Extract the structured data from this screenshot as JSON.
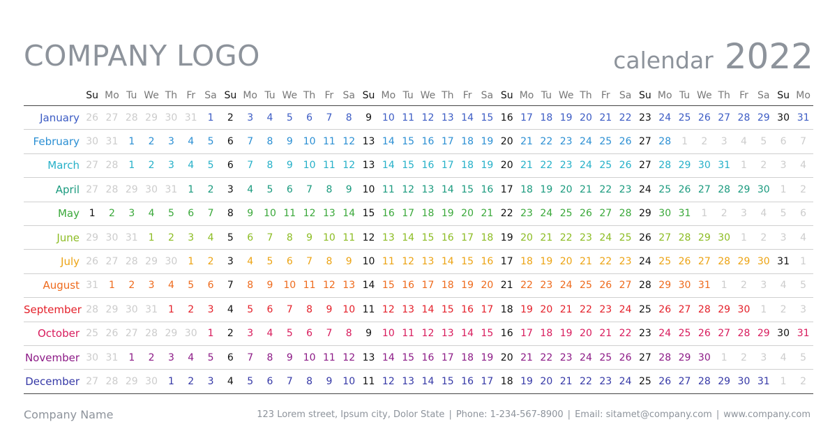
{
  "header": {
    "logo": "COMPANY LOGO",
    "title_word": "calendar",
    "year": "2022"
  },
  "weekdays": [
    "Su",
    "Mo",
    "Tu",
    "We",
    "Th",
    "Fr",
    "Sa",
    "Su",
    "Mo",
    "Tu",
    "We",
    "Th",
    "Fr",
    "Sa",
    "Su",
    "Mo",
    "Tu",
    "We",
    "Th",
    "Fr",
    "Sa",
    "Su",
    "Mo",
    "Tu",
    "We",
    "Th",
    "Fr",
    "Sa",
    "Su",
    "Mo",
    "Tu",
    "We",
    "Th",
    "Fr",
    "Sa",
    "Su",
    "Mo"
  ],
  "months": [
    {
      "name": "January",
      "color": "#3b5bc4",
      "days": [
        "26",
        "27",
        "28",
        "29",
        "30",
        "31",
        "1",
        "2",
        "3",
        "4",
        "5",
        "6",
        "7",
        "8",
        "9",
        "10",
        "11",
        "12",
        "13",
        "14",
        "15",
        "16",
        "17",
        "18",
        "19",
        "20",
        "21",
        "22",
        "23",
        "24",
        "25",
        "26",
        "27",
        "28",
        "29",
        "30",
        "31"
      ],
      "inMonth": [
        false,
        false,
        false,
        false,
        false,
        false,
        true,
        true,
        true,
        true,
        true,
        true,
        true,
        true,
        true,
        true,
        true,
        true,
        true,
        true,
        true,
        true,
        true,
        true,
        true,
        true,
        true,
        true,
        true,
        true,
        true,
        true,
        true,
        true,
        true,
        true,
        true
      ]
    },
    {
      "name": "February",
      "color": "#2b8fd3",
      "days": [
        "30",
        "31",
        "1",
        "2",
        "3",
        "4",
        "5",
        "6",
        "7",
        "8",
        "9",
        "10",
        "11",
        "12",
        "13",
        "14",
        "15",
        "16",
        "17",
        "18",
        "19",
        "20",
        "21",
        "22",
        "23",
        "24",
        "25",
        "26",
        "27",
        "28",
        "1",
        "2",
        "3",
        "4",
        "5",
        "6",
        "7"
      ],
      "inMonth": [
        false,
        false,
        true,
        true,
        true,
        true,
        true,
        true,
        true,
        true,
        true,
        true,
        true,
        true,
        true,
        true,
        true,
        true,
        true,
        true,
        true,
        true,
        true,
        true,
        true,
        true,
        true,
        true,
        true,
        true,
        false,
        false,
        false,
        false,
        false,
        false,
        false
      ]
    },
    {
      "name": "March",
      "color": "#25b0c8",
      "days": [
        "27",
        "28",
        "1",
        "2",
        "3",
        "4",
        "5",
        "6",
        "7",
        "8",
        "9",
        "10",
        "11",
        "12",
        "13",
        "14",
        "15",
        "16",
        "17",
        "18",
        "19",
        "20",
        "21",
        "22",
        "23",
        "24",
        "25",
        "26",
        "27",
        "28",
        "29",
        "30",
        "31",
        "1",
        "2",
        "3",
        "4"
      ],
      "inMonth": [
        false,
        false,
        true,
        true,
        true,
        true,
        true,
        true,
        true,
        true,
        true,
        true,
        true,
        true,
        true,
        true,
        true,
        true,
        true,
        true,
        true,
        true,
        true,
        true,
        true,
        true,
        true,
        true,
        true,
        true,
        true,
        true,
        true,
        false,
        false,
        false,
        false
      ]
    },
    {
      "name": "April",
      "color": "#1a9a7e",
      "days": [
        "27",
        "28",
        "29",
        "30",
        "31",
        "1",
        "2",
        "3",
        "4",
        "5",
        "6",
        "7",
        "8",
        "9",
        "10",
        "11",
        "12",
        "13",
        "14",
        "15",
        "16",
        "17",
        "18",
        "19",
        "20",
        "21",
        "22",
        "23",
        "24",
        "25",
        "26",
        "27",
        "28",
        "29",
        "30",
        "1",
        "2"
      ],
      "inMonth": [
        false,
        false,
        false,
        false,
        false,
        true,
        true,
        true,
        true,
        true,
        true,
        true,
        true,
        true,
        true,
        true,
        true,
        true,
        true,
        true,
        true,
        true,
        true,
        true,
        true,
        true,
        true,
        true,
        true,
        true,
        true,
        true,
        true,
        true,
        true,
        false,
        false
      ]
    },
    {
      "name": "May",
      "color": "#3aa83a",
      "days": [
        "1",
        "2",
        "3",
        "4",
        "5",
        "6",
        "7",
        "8",
        "9",
        "10",
        "11",
        "12",
        "13",
        "14",
        "15",
        "16",
        "17",
        "18",
        "19",
        "20",
        "21",
        "22",
        "23",
        "24",
        "25",
        "26",
        "27",
        "28",
        "29",
        "30",
        "31",
        "1",
        "2",
        "3",
        "4",
        "5",
        "6"
      ],
      "inMonth": [
        true,
        true,
        true,
        true,
        true,
        true,
        true,
        true,
        true,
        true,
        true,
        true,
        true,
        true,
        true,
        true,
        true,
        true,
        true,
        true,
        true,
        true,
        true,
        true,
        true,
        true,
        true,
        true,
        true,
        true,
        true,
        false,
        false,
        false,
        false,
        false,
        false
      ]
    },
    {
      "name": "June",
      "color": "#8cbc23",
      "days": [
        "29",
        "30",
        "31",
        "1",
        "2",
        "3",
        "4",
        "5",
        "6",
        "7",
        "8",
        "9",
        "10",
        "11",
        "12",
        "13",
        "14",
        "15",
        "16",
        "17",
        "18",
        "19",
        "20",
        "21",
        "22",
        "23",
        "24",
        "25",
        "26",
        "27",
        "28",
        "29",
        "30",
        "1",
        "2",
        "3",
        "4"
      ],
      "inMonth": [
        false,
        false,
        false,
        true,
        true,
        true,
        true,
        true,
        true,
        true,
        true,
        true,
        true,
        true,
        true,
        true,
        true,
        true,
        true,
        true,
        true,
        true,
        true,
        true,
        true,
        true,
        true,
        true,
        true,
        true,
        true,
        true,
        true,
        false,
        false,
        false,
        false
      ]
    },
    {
      "name": "July",
      "color": "#eca313",
      "days": [
        "26",
        "27",
        "28",
        "29",
        "30",
        "1",
        "2",
        "3",
        "4",
        "5",
        "6",
        "7",
        "8",
        "9",
        "10",
        "11",
        "12",
        "13",
        "14",
        "15",
        "16",
        "17",
        "18",
        "19",
        "20",
        "21",
        "22",
        "23",
        "24",
        "25",
        "26",
        "27",
        "28",
        "29",
        "30",
        "31",
        "1"
      ],
      "inMonth": [
        false,
        false,
        false,
        false,
        false,
        true,
        true,
        true,
        true,
        true,
        true,
        true,
        true,
        true,
        true,
        true,
        true,
        true,
        true,
        true,
        true,
        true,
        true,
        true,
        true,
        true,
        true,
        true,
        true,
        true,
        true,
        true,
        true,
        true,
        true,
        true,
        false
      ]
    },
    {
      "name": "August",
      "color": "#ee6a1c",
      "days": [
        "31",
        "1",
        "2",
        "3",
        "4",
        "5",
        "6",
        "7",
        "8",
        "9",
        "10",
        "11",
        "12",
        "13",
        "14",
        "15",
        "16",
        "17",
        "18",
        "19",
        "20",
        "21",
        "22",
        "23",
        "24",
        "25",
        "26",
        "27",
        "28",
        "29",
        "30",
        "31",
        "1",
        "2",
        "3",
        "4",
        "5"
      ],
      "inMonth": [
        false,
        true,
        true,
        true,
        true,
        true,
        true,
        true,
        true,
        true,
        true,
        true,
        true,
        true,
        true,
        true,
        true,
        true,
        true,
        true,
        true,
        true,
        true,
        true,
        true,
        true,
        true,
        true,
        true,
        true,
        true,
        true,
        false,
        false,
        false,
        false,
        false
      ]
    },
    {
      "name": "September",
      "color": "#e4202a",
      "days": [
        "28",
        "29",
        "30",
        "31",
        "1",
        "2",
        "3",
        "4",
        "5",
        "6",
        "7",
        "8",
        "9",
        "10",
        "11",
        "12",
        "13",
        "14",
        "15",
        "16",
        "17",
        "18",
        "19",
        "20",
        "21",
        "22",
        "23",
        "24",
        "25",
        "26",
        "27",
        "28",
        "29",
        "30",
        "1",
        "2",
        "3"
      ],
      "inMonth": [
        false,
        false,
        false,
        false,
        true,
        true,
        true,
        true,
        true,
        true,
        true,
        true,
        true,
        true,
        true,
        true,
        true,
        true,
        true,
        true,
        true,
        true,
        true,
        true,
        true,
        true,
        true,
        true,
        true,
        true,
        true,
        true,
        true,
        true,
        false,
        false,
        false
      ]
    },
    {
      "name": "October",
      "color": "#d81b5c",
      "days": [
        "25",
        "26",
        "27",
        "28",
        "29",
        "30",
        "1",
        "2",
        "3",
        "4",
        "5",
        "6",
        "7",
        "8",
        "9",
        "10",
        "11",
        "12",
        "13",
        "14",
        "15",
        "16",
        "17",
        "18",
        "19",
        "20",
        "21",
        "22",
        "23",
        "24",
        "25",
        "26",
        "27",
        "28",
        "29",
        "30",
        "31"
      ],
      "inMonth": [
        false,
        false,
        false,
        false,
        false,
        false,
        true,
        true,
        true,
        true,
        true,
        true,
        true,
        true,
        true,
        true,
        true,
        true,
        true,
        true,
        true,
        true,
        true,
        true,
        true,
        true,
        true,
        true,
        true,
        true,
        true,
        true,
        true,
        true,
        true,
        true,
        true
      ]
    },
    {
      "name": "November",
      "color": "#8c1a86",
      "days": [
        "30",
        "31",
        "1",
        "2",
        "3",
        "4",
        "5",
        "6",
        "7",
        "8",
        "9",
        "10",
        "11",
        "12",
        "13",
        "14",
        "15",
        "16",
        "17",
        "18",
        "19",
        "20",
        "21",
        "22",
        "23",
        "24",
        "25",
        "26",
        "27",
        "28",
        "29",
        "30",
        "1",
        "2",
        "3",
        "4",
        "5"
      ],
      "inMonth": [
        false,
        false,
        true,
        true,
        true,
        true,
        true,
        true,
        true,
        true,
        true,
        true,
        true,
        true,
        true,
        true,
        true,
        true,
        true,
        true,
        true,
        true,
        true,
        true,
        true,
        true,
        true,
        true,
        true,
        true,
        true,
        true,
        false,
        false,
        false,
        false,
        false
      ]
    },
    {
      "name": "December",
      "color": "#3538a6",
      "days": [
        "27",
        "28",
        "29",
        "30",
        "1",
        "2",
        "3",
        "4",
        "5",
        "6",
        "7",
        "8",
        "9",
        "10",
        "11",
        "12",
        "13",
        "14",
        "15",
        "16",
        "17",
        "18",
        "19",
        "20",
        "21",
        "22",
        "23",
        "24",
        "25",
        "26",
        "27",
        "28",
        "29",
        "30",
        "31",
        "1",
        "2"
      ],
      "inMonth": [
        false,
        false,
        false,
        false,
        true,
        true,
        true,
        true,
        true,
        true,
        true,
        true,
        true,
        true,
        true,
        true,
        true,
        true,
        true,
        true,
        true,
        true,
        true,
        true,
        true,
        true,
        true,
        true,
        true,
        true,
        true,
        true,
        true,
        true,
        true,
        false,
        false
      ]
    }
  ],
  "footer": {
    "company": "Company Name",
    "address": "123 Lorem street, Ipsum city, Dolor State",
    "phone": "Phone: 1-234-567-8900",
    "email": "Email: sitamet@company.com",
    "web": "www.company.com",
    "separator": "|"
  },
  "colors": {
    "muted": "#cccccc",
    "sunday": "#111111",
    "header_gray": "#8d939b"
  }
}
